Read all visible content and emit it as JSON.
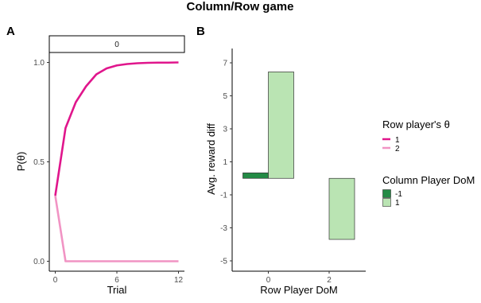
{
  "title": "Column/Row game",
  "chart_data": [
    {
      "panel_label": "A",
      "type": "line",
      "facet": "0",
      "xlabel": "Trial",
      "ylabel": "P(θ)",
      "xlim": [
        0,
        12
      ],
      "ylim": [
        0,
        1
      ],
      "xticks": [
        "0",
        "6",
        "12"
      ],
      "yticks": [
        "0.0",
        "0.5",
        "1.0"
      ],
      "x": [
        0,
        1,
        2,
        3,
        4,
        5,
        6,
        7,
        8,
        9,
        10,
        11,
        12
      ],
      "series": [
        {
          "name": "1",
          "color": "#e0168c",
          "values": [
            0.33,
            0.67,
            0.8,
            0.88,
            0.94,
            0.97,
            0.985,
            0.992,
            0.996,
            0.998,
            0.999,
            0.999,
            1.0
          ]
        },
        {
          "name": "2",
          "color": "#f194c4",
          "values": [
            0.33,
            0.0,
            0.0,
            0.0,
            0.0,
            0.0,
            0.0,
            0.0,
            0.0,
            0.0,
            0.0,
            0.0,
            0.0
          ]
        }
      ],
      "grid": false
    },
    {
      "panel_label": "B",
      "type": "bar",
      "xlabel": "Row Player DoM",
      "ylabel": "Avg. reward diff",
      "categories": [
        "0",
        "2"
      ],
      "ylim": [
        -5.5,
        7.5
      ],
      "yticks": [
        "7",
        "5",
        "3",
        "1",
        "-1",
        "-3",
        "-5"
      ],
      "series": [
        {
          "name": "-1",
          "color": "#238b45",
          "values": [
            0.33,
            null
          ]
        },
        {
          "name": "1",
          "color": "#bae4b3",
          "values": [
            6.45,
            -3.7
          ]
        }
      ],
      "grid": false
    }
  ],
  "legends": {
    "theta": {
      "title": "Row player's θ",
      "items": [
        {
          "label": "1",
          "color": "#e0168c"
        },
        {
          "label": "2",
          "color": "#f194c4"
        }
      ]
    },
    "dom": {
      "title": "Column Player DoM",
      "items": [
        {
          "label": "-1",
          "color": "#238b45"
        },
        {
          "label": "1",
          "color": "#bae4b3"
        }
      ]
    }
  }
}
